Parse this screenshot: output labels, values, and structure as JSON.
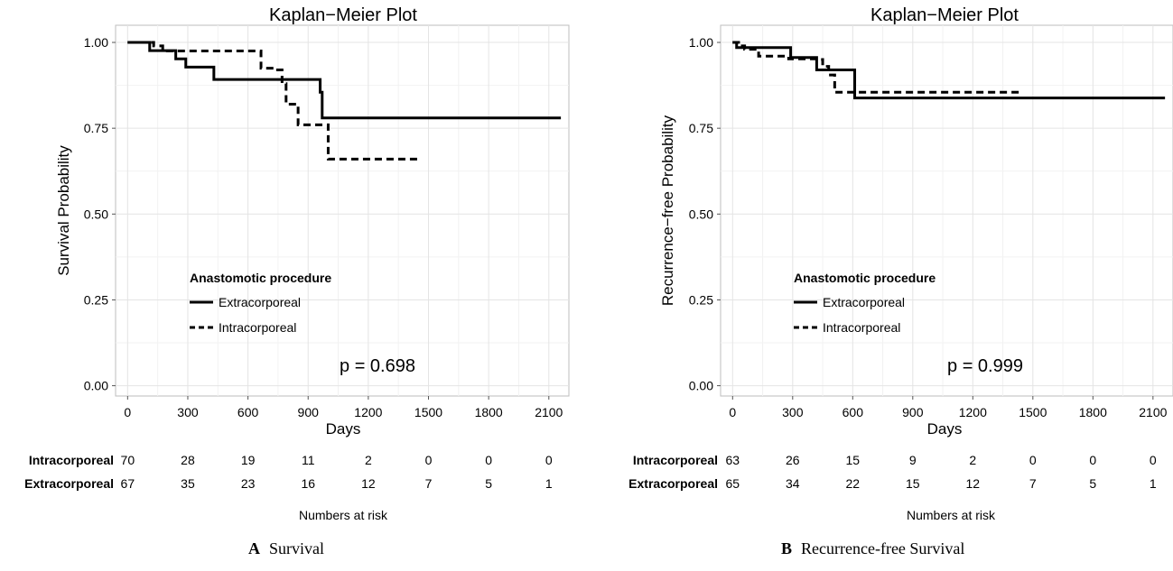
{
  "chart_data": [
    {
      "type": "line",
      "title": "Kaplan−Meier Plot",
      "xlabel": "Days",
      "ylabel": "Survival Probability",
      "xlim": [
        -60,
        2200
      ],
      "ylim": [
        -0.03,
        1.05
      ],
      "x_ticks": [
        0,
        300,
        600,
        900,
        1200,
        1500,
        1800,
        2100
      ],
      "y_ticks": [
        "0.00",
        "0.25",
        "0.50",
        "0.75",
        "1.00"
      ],
      "grid": true,
      "legend": {
        "title": "Anastomotic procedure",
        "placement": "lower-left",
        "entries": [
          "Extracorporeal",
          "Intracorporeal"
        ]
      },
      "annotation": "p = 0.698",
      "series": [
        {
          "name": "Extracorporeal",
          "style": "solid",
          "steps": [
            [
              0,
              1.0
            ],
            [
              110,
              0.976
            ],
            [
              240,
              0.952
            ],
            [
              290,
              0.928
            ],
            [
              430,
              0.892
            ],
            [
              955,
              0.892
            ],
            [
              960,
              0.855
            ],
            [
              970,
              0.78
            ],
            [
              2160,
              0.78
            ]
          ]
        },
        {
          "name": "Intracorporeal",
          "style": "dashed",
          "steps": [
            [
              0,
              1.0
            ],
            [
              130,
              0.99
            ],
            [
              175,
              0.975
            ],
            [
              660,
              0.975
            ],
            [
              665,
              0.925
            ],
            [
              730,
              0.92
            ],
            [
              770,
              0.88
            ],
            [
              790,
              0.82
            ],
            [
              850,
              0.76
            ],
            [
              995,
              0.76
            ],
            [
              1000,
              0.66
            ],
            [
              1450,
              0.66
            ]
          ]
        }
      ],
      "risk_table": {
        "title": "Numbers at risk",
        "rows": [
          {
            "label": "Intracorporeal",
            "values": [
              "70",
              "28",
              "19",
              "11",
              "2",
              "0",
              "0",
              "0"
            ]
          },
          {
            "label": "Extracorporeal",
            "values": [
              "67",
              "35",
              "23",
              "16",
              "12",
              "7",
              "5",
              "1"
            ]
          }
        ]
      },
      "caption": {
        "letter": "A",
        "text": "Survival"
      }
    },
    {
      "type": "line",
      "title": "Kaplan−Meier Plot",
      "xlabel": "Days",
      "ylabel": "Recurrence−free Probability",
      "xlim": [
        -60,
        2200
      ],
      "ylim": [
        -0.03,
        1.05
      ],
      "x_ticks": [
        0,
        300,
        600,
        900,
        1200,
        1500,
        1800,
        2100
      ],
      "y_ticks": [
        "0.00",
        "0.25",
        "0.50",
        "0.75",
        "1.00"
      ],
      "grid": true,
      "legend": {
        "title": "Anastomotic procedure",
        "placement": "lower-left",
        "entries": [
          "Extracorporeal",
          "Intracorporeal"
        ]
      },
      "annotation": "p = 0.999",
      "series": [
        {
          "name": "Extracorporeal",
          "style": "solid",
          "steps": [
            [
              0,
              1.0
            ],
            [
              20,
              0.985
            ],
            [
              290,
              0.956
            ],
            [
              420,
              0.92
            ],
            [
              610,
              0.838
            ],
            [
              2160,
              0.838
            ]
          ]
        },
        {
          "name": "Intracorporeal",
          "style": "dashed",
          "steps": [
            [
              0,
              1.0
            ],
            [
              30,
              0.99
            ],
            [
              60,
              0.98
            ],
            [
              130,
              0.96
            ],
            [
              280,
              0.952
            ],
            [
              430,
              0.95
            ],
            [
              450,
              0.93
            ],
            [
              480,
              0.905
            ],
            [
              510,
              0.855
            ],
            [
              1450,
              0.855
            ]
          ]
        }
      ],
      "risk_table": {
        "title": "Numbers at risk",
        "rows": [
          {
            "label": "Intracorporeal",
            "values": [
              "63",
              "26",
              "15",
              "9",
              "2",
              "0",
              "0",
              "0"
            ]
          },
          {
            "label": "Extracorporeal",
            "values": [
              "65",
              "34",
              "22",
              "15",
              "12",
              "7",
              "5",
              "1"
            ]
          }
        ]
      },
      "caption": {
        "letter": "B",
        "text": "Recurrence-free Survival"
      }
    }
  ]
}
